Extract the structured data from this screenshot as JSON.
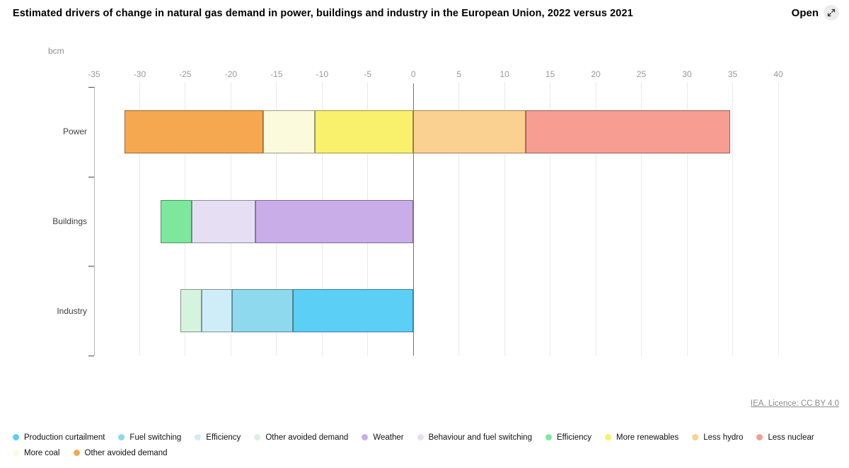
{
  "header": {
    "title": "Estimated drivers of change in natural gas demand in power, buildings and industry in the European Union, 2022 versus 2021",
    "open_label": "Open"
  },
  "footer": {
    "licence": "IEA. Licence: CC BY 4.0"
  },
  "chart_data": {
    "type": "bar",
    "orientation": "horizontal-stacked",
    "title": "Estimated drivers of change in natural gas demand in power, buildings and industry in the European Union, 2022 versus 2021",
    "unit_label": "bcm",
    "xlim": [
      -35,
      40
    ],
    "x_ticks": [
      -35,
      -30,
      -25,
      -20,
      -15,
      -10,
      -5,
      0,
      5,
      10,
      15,
      20,
      25,
      30,
      35,
      40
    ],
    "grid": true,
    "categories": [
      "Power",
      "Buildings",
      "Industry"
    ],
    "bars": [
      {
        "category": "Power",
        "segments": [
          {
            "label": "Other avoided demand",
            "value": -15.2,
            "color": "#F6A850"
          },
          {
            "label": "More coal",
            "value": -5.7,
            "color": "#FCFADC"
          },
          {
            "label": "More renewables",
            "value": -10.8,
            "color": "#F9F06B"
          },
          {
            "label": "Less hydro",
            "value": 12.3,
            "color": "#FAD191"
          },
          {
            "label": "Less nuclear",
            "value": 22.4,
            "color": "#F79D92"
          }
        ]
      },
      {
        "category": "Buildings",
        "segments": [
          {
            "label": "Efficiency",
            "value": -3.4,
            "color": "#7DE89C"
          },
          {
            "label": "Behaviour and fuel switching",
            "value": -7.0,
            "color": "#E6DFF4"
          },
          {
            "label": "Weather",
            "value": -17.3,
            "color": "#C9ADE9"
          }
        ]
      },
      {
        "category": "Industry",
        "segments": [
          {
            "label": "Other avoided demand",
            "value": -2.3,
            "color": "#D6F3DE"
          },
          {
            "label": "Efficiency",
            "value": -3.3,
            "color": "#CFEDF8"
          },
          {
            "label": "Fuel switching",
            "value": -6.7,
            "color": "#8ED9ED"
          },
          {
            "label": "Production curtailment",
            "value": -13.2,
            "color": "#5BCFF5"
          }
        ]
      }
    ],
    "legend_position": "bottom"
  },
  "legend": {
    "items": [
      {
        "label": "Production curtailment",
        "color": "#5BCFF5"
      },
      {
        "label": "Fuel switching",
        "color": "#8ED9ED"
      },
      {
        "label": "Efficiency",
        "color": "#CFEDF8"
      },
      {
        "label": "Other avoided demand",
        "color": "#D6F3DE"
      },
      {
        "label": "Weather",
        "color": "#C9ADE9"
      },
      {
        "label": "Behaviour and fuel switching",
        "color": "#E6DFF4"
      },
      {
        "label": "Efficiency",
        "color": "#7DE89C"
      },
      {
        "label": "More renewables",
        "color": "#F9F06B"
      },
      {
        "label": "Less hydro",
        "color": "#FAD191"
      },
      {
        "label": "Less nuclear",
        "color": "#F79D92"
      },
      {
        "label": "More coal",
        "color": "#FCFADC"
      },
      {
        "label": "Other avoided demand",
        "color": "#F6A850"
      }
    ]
  }
}
